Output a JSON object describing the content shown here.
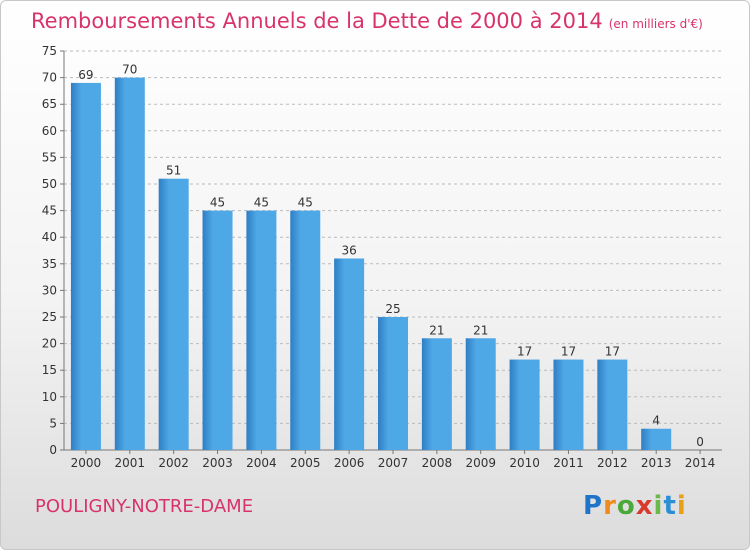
{
  "title": "Remboursements Annuels de la Dette de 2000 à 2014",
  "unit": "(en milliers d'€)",
  "city": "POULIGNY-NOTRE-DAME",
  "logo": {
    "letters": [
      "P",
      "r",
      "o",
      "x",
      "i",
      "t",
      "i"
    ],
    "colors": [
      "#1f73c9",
      "#f08a1c",
      "#4aa93a",
      "#d83a2e",
      "#6cb84a",
      "#2c8fd6",
      "#e8a01a"
    ]
  },
  "colors": {
    "bar": "#4fa8e6",
    "bar_dark": "#2e7ec4",
    "title": "#d8336b",
    "axis": "#777777",
    "grid": "#bbbbbb"
  },
  "chart_data": {
    "type": "bar",
    "title": "Remboursements Annuels de la Dette de 2000 à 2014",
    "subtitle": "(en milliers d'€)",
    "categories": [
      "2000",
      "2001",
      "2002",
      "2003",
      "2004",
      "2005",
      "2006",
      "2007",
      "2008",
      "2009",
      "2010",
      "2011",
      "2012",
      "2013",
      "2014"
    ],
    "values": [
      69,
      70,
      51,
      45,
      45,
      45,
      36,
      25,
      21,
      21,
      17,
      17,
      17,
      4,
      0
    ],
    "ylim": [
      0,
      75
    ],
    "yticks": [
      0,
      5,
      10,
      15,
      20,
      25,
      30,
      35,
      40,
      45,
      50,
      55,
      60,
      65,
      70,
      75
    ],
    "grid": "horizontal dashed"
  }
}
